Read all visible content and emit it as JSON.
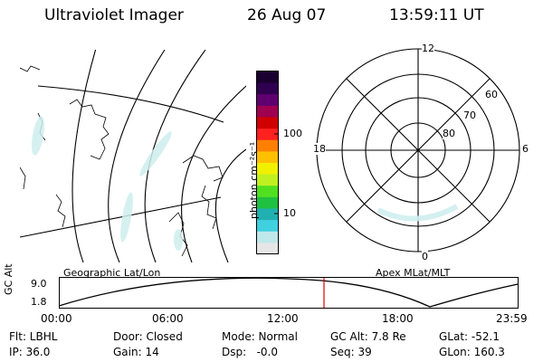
{
  "header": {
    "instrument": "Ultraviolet Imager",
    "date": "26 Aug 07",
    "time": "13:59:11 UT"
  },
  "colorbar": {
    "unit_label": "photon cm⁻²s⁻¹",
    "tick_100": "100",
    "tick_10": "10",
    "colors": [
      "#e6e6e6",
      "#bfe8ea",
      "#40d0e0",
      "#20b0b0",
      "#20c040",
      "#50e020",
      "#c0f020",
      "#f0f000",
      "#ffc000",
      "#ff8000",
      "#ff2020",
      "#d00000",
      "#a00050",
      "#600070",
      "#300050",
      "#1a0030"
    ]
  },
  "geo_panel": {
    "label": "Geographic Lat/Lon"
  },
  "polar_panel": {
    "label": "Apex MLat/MLT",
    "mlt_labels": {
      "top": "12",
      "left": "18",
      "right": "6",
      "bottom": "0"
    },
    "lat_labels": [
      "60",
      "70",
      "80"
    ]
  },
  "altitude_plot": {
    "ylabel": "GC Alt",
    "y_ticks": [
      "9.0",
      "1.8"
    ],
    "x_ticks": [
      "00:00",
      "06:00",
      "12:00",
      "18:00",
      "23:59"
    ]
  },
  "status": {
    "flt": "Flt: LBHL",
    "ip": "IP: 36.0",
    "door": "Door: Closed",
    "gain": "Gain: 14",
    "mode": "Mode: Normal",
    "dsp": "Dsp:   -0.0",
    "gc_alt": "GC Alt: 7.8 Re",
    "seq": "Seq: 39",
    "glat": "GLat: -52.1",
    "glon": "GLon: 160.3"
  }
}
